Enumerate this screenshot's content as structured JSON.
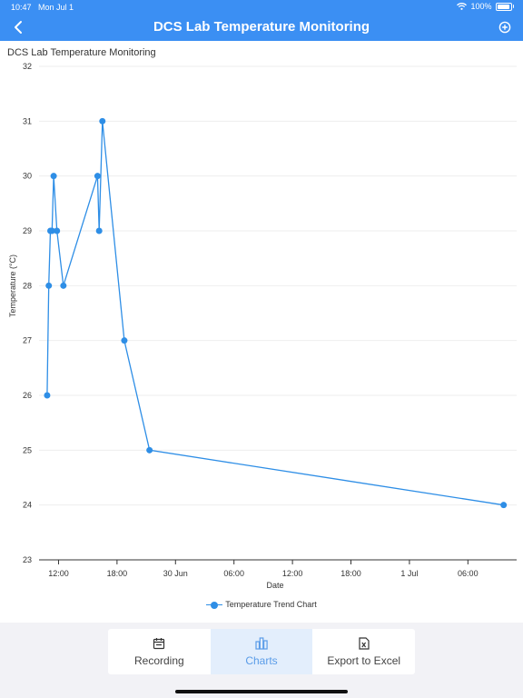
{
  "status_bar": {
    "time": "10:47",
    "date": "Mon Jul 1",
    "battery": "100%"
  },
  "nav": {
    "title": "DCS Lab Temperature Monitoring",
    "back_icon": "chevron-left-icon",
    "add_icon": "plus-circle-icon"
  },
  "chart_data": {
    "type": "line",
    "title": "DCS Lab Temperature Monitoring",
    "xlabel": "Date",
    "ylabel": "Temperature (°C)",
    "ylim": [
      23,
      32
    ],
    "yticks": [
      23,
      24,
      25,
      26,
      27,
      28,
      29,
      30,
      31,
      32
    ],
    "xlim": [
      "2024-06-29T10:00",
      "2024-07-01T11:00"
    ],
    "xticks": [
      {
        "t": "2024-06-29T12:00",
        "label": "12:00"
      },
      {
        "t": "2024-06-29T18:00",
        "label": "18:00"
      },
      {
        "t": "2024-06-30T00:00",
        "label": "30 Jun"
      },
      {
        "t": "2024-06-30T06:00",
        "label": "06:00"
      },
      {
        "t": "2024-06-30T12:00",
        "label": "12:00"
      },
      {
        "t": "2024-06-30T18:00",
        "label": "18:00"
      },
      {
        "t": "2024-07-01T00:00",
        "label": "1 Jul"
      },
      {
        "t": "2024-07-01T06:00",
        "label": "06:00"
      }
    ],
    "grid": true,
    "legend": "bottom-center",
    "series": [
      {
        "name": "Temperature Trend Chart",
        "color": "#2e8ee6",
        "points": [
          {
            "x": "2024-06-29T10:50",
            "y": 26
          },
          {
            "x": "2024-06-29T11:00",
            "y": 28
          },
          {
            "x": "2024-06-29T11:10",
            "y": 29
          },
          {
            "x": "2024-06-29T11:20",
            "y": 29
          },
          {
            "x": "2024-06-29T11:30",
            "y": 30
          },
          {
            "x": "2024-06-29T11:50",
            "y": 29
          },
          {
            "x": "2024-06-29T12:30",
            "y": 28
          },
          {
            "x": "2024-06-29T16:00",
            "y": 30
          },
          {
            "x": "2024-06-29T16:10",
            "y": 29
          },
          {
            "x": "2024-06-29T16:30",
            "y": 31
          },
          {
            "x": "2024-06-29T18:45",
            "y": 27
          },
          {
            "x": "2024-06-29T21:20",
            "y": 25
          },
          {
            "x": "2024-07-01T09:40",
            "y": 24
          }
        ]
      }
    ]
  },
  "tabs": [
    {
      "label": "Recording",
      "icon": "calendar-icon",
      "active": false
    },
    {
      "label": "Charts",
      "icon": "bar-chart-icon",
      "active": true
    },
    {
      "label": "Export to Excel",
      "icon": "excel-icon",
      "active": false
    }
  ]
}
